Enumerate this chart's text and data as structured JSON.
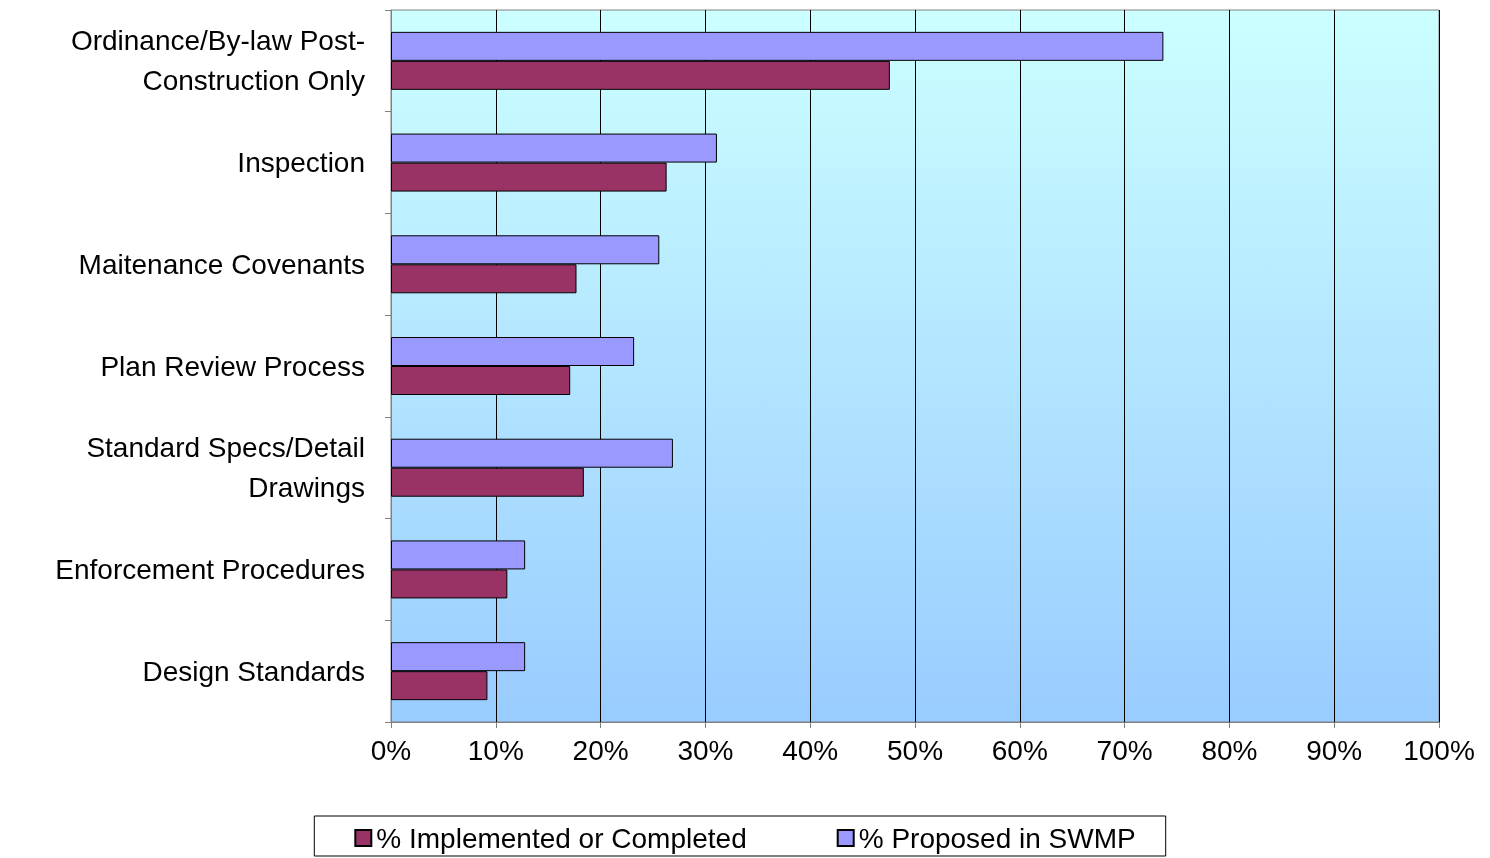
{
  "chart_data": {
    "type": "bar",
    "orientation": "horizontal",
    "categories": [
      "Ordinance/By-law Post-\nConstruction Only",
      "Inspection",
      "Maitenance Covenants",
      "Plan Review Process",
      "Standard Specs/Detail\nDrawings",
      "Enforcement Procedures",
      "Design Standards"
    ],
    "series": [
      {
        "name": "% Proposed in SWMP",
        "color": "#9999ff",
        "values": [
          73.7,
          31.1,
          25.6,
          23.2,
          26.9,
          12.8,
          12.8
        ]
      },
      {
        "name": "% Implemented or Completed",
        "color": "#993366",
        "values": [
          47.6,
          26.3,
          17.7,
          17.1,
          18.4,
          11.1,
          9.2
        ]
      }
    ],
    "xlim": [
      0,
      100
    ],
    "xticks": [
      {
        "value": 0,
        "label": "0%"
      },
      {
        "value": 10,
        "label": "10%"
      },
      {
        "value": 20,
        "label": "20%"
      },
      {
        "value": 30,
        "label": "30%"
      },
      {
        "value": 40,
        "label": "40%"
      },
      {
        "value": 50,
        "label": "50%"
      },
      {
        "value": 60,
        "label": "60%"
      },
      {
        "value": 70,
        "label": "70%"
      },
      {
        "value": 80,
        "label": "80%"
      },
      {
        "value": 90,
        "label": "90%"
      },
      {
        "value": 100,
        "label": "100%"
      }
    ],
    "grid": "x",
    "legend": "bottom"
  }
}
